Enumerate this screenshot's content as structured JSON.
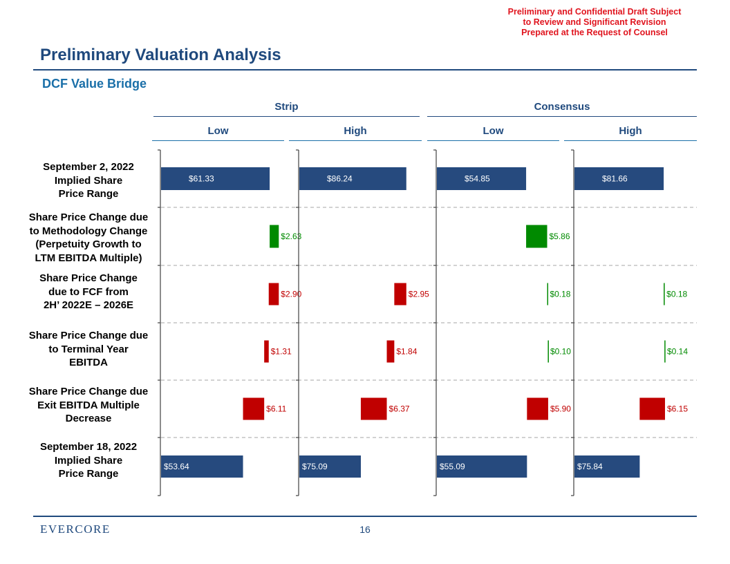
{
  "disclaimer": {
    "line1": "Preliminary and Confidential Draft Subject",
    "line2": "to Review and Significant Revision",
    "line3": "Prepared at the Request of Counsel"
  },
  "header": {
    "title": "Preliminary Valuation Analysis",
    "subtitle": "DCF Value Bridge"
  },
  "groups": {
    "strip": "Strip",
    "consensus": "Consensus"
  },
  "columns": [
    "Low",
    "High",
    "Low",
    "High"
  ],
  "rows": [
    {
      "lines": [
        "September 2, 2022",
        "Implied Share",
        "Price Range"
      ]
    },
    {
      "lines": [
        "Share Price Change due",
        "to Methodology Change",
        "(Perpetuity Growth to",
        "LTM EBITDA Multiple)"
      ]
    },
    {
      "lines": [
        "Share Price Change",
        "due to FCF from",
        "2H’ 2022E – 2026E"
      ]
    },
    {
      "lines": [
        "Share Price Change due",
        "to Terminal Year",
        "EBITDA"
      ]
    },
    {
      "lines": [
        "Share Price Change due",
        "Exit EBITDA Multiple",
        "Decrease"
      ]
    },
    {
      "lines": [
        "September 18, 2022",
        "Implied Share",
        "Price Range"
      ]
    }
  ],
  "colors": {
    "navy": "#264a7e",
    "green": "#008a00",
    "red": "#c00000",
    "blue_title": "#1f497d",
    "disclaimer_red": "#e0141e"
  },
  "chart_data": {
    "type": "waterfall",
    "title": "DCF Value Bridge",
    "series_groups": [
      "Strip",
      "Consensus"
    ],
    "columns": [
      "Strip Low",
      "Strip High",
      "Consensus Low",
      "Consensus High"
    ],
    "steps": [
      "September 2, 2022 Implied Share Price Range",
      "Methodology Change",
      "FCF from 2H’ 2022E – 2026E",
      "Terminal Year EBITDA",
      "Exit EBITDA Multiple Decrease",
      "September 18, 2022 Implied Share Price Range"
    ],
    "values": [
      [
        {
          "type": "total",
          "value": 61.33,
          "label": "$61.33"
        },
        {
          "type": "increase",
          "value": 2.63,
          "label": "$2.63"
        },
        {
          "type": "decrease",
          "value": 2.9,
          "label": "$2.90"
        },
        {
          "type": "decrease",
          "value": 1.31,
          "label": "$1.31"
        },
        {
          "type": "decrease",
          "value": 6.11,
          "label": "$6.11"
        },
        {
          "type": "total",
          "value": 53.64,
          "label": "$53.64"
        }
      ],
      [
        {
          "type": "total",
          "value": 86.24,
          "label": "$86.24"
        },
        {
          "type": "blank",
          "value": 0,
          "label": ""
        },
        {
          "type": "decrease",
          "value": 2.95,
          "label": "$2.95"
        },
        {
          "type": "decrease",
          "value": 1.84,
          "label": "$1.84"
        },
        {
          "type": "decrease",
          "value": 6.37,
          "label": "$6.37"
        },
        {
          "type": "total",
          "value": 75.09,
          "label": "$75.09"
        }
      ],
      [
        {
          "type": "total",
          "value": 54.85,
          "label": "$54.85"
        },
        {
          "type": "increase",
          "value": 5.86,
          "label": "$5.86"
        },
        {
          "type": "increase",
          "value": 0.18,
          "label": "$0.18"
        },
        {
          "type": "increase",
          "value": 0.1,
          "label": "$0.10"
        },
        {
          "type": "decrease",
          "value": 5.9,
          "label": "$5.90"
        },
        {
          "type": "total",
          "value": 55.09,
          "label": "$55.09"
        }
      ],
      [
        {
          "type": "total",
          "value": 81.66,
          "label": "$81.66"
        },
        {
          "type": "blank",
          "value": 0,
          "label": ""
        },
        {
          "type": "increase",
          "value": 0.18,
          "label": "$0.18"
        },
        {
          "type": "increase",
          "value": 0.14,
          "label": "$0.14"
        },
        {
          "type": "decrease",
          "value": 6.15,
          "label": "$6.15"
        },
        {
          "type": "total",
          "value": 75.84,
          "label": "$75.84"
        }
      ]
    ],
    "axis_ranges": [
      [
        30,
        64.7
      ],
      [
        60,
        89.5
      ],
      [
        30,
        63.5
      ],
      [
        60,
        89.2
      ]
    ]
  },
  "footer": {
    "logo": "EVERCORE",
    "page_number": "16"
  }
}
